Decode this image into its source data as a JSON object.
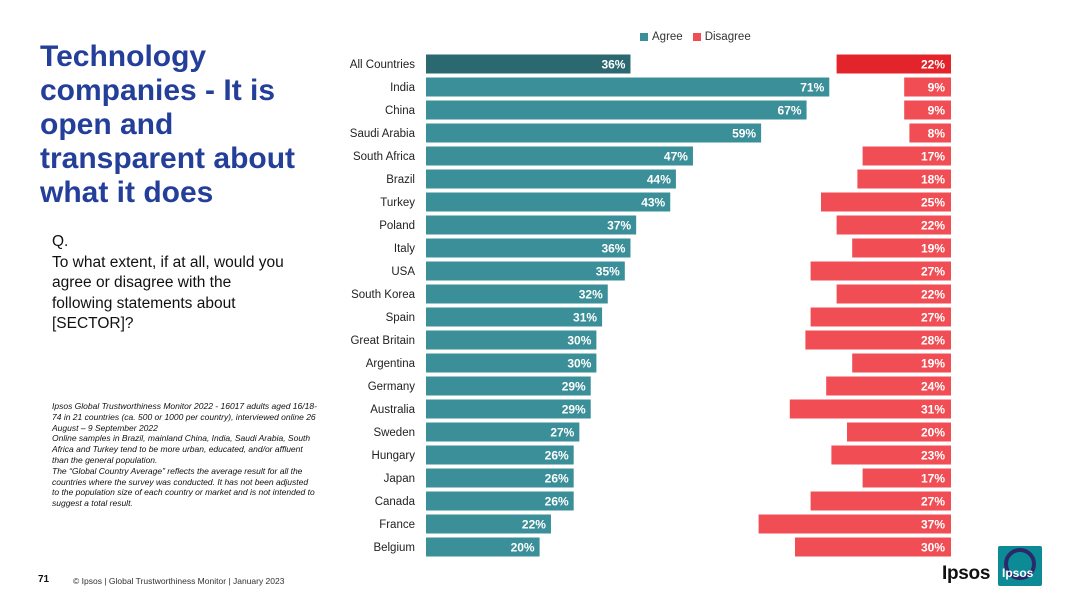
{
  "slide": {
    "title": "Technology companies - It is open and transparent about what it does",
    "question_label": "Q.",
    "question_text": "To what extent, if at all, would you agree or disagree with the following statements about [SECTOR]?",
    "source_note_1": "Ipsos Global Trustworthiness Monitor 2022 - 16017 adults aged 16/18-74 in 21 countries (ca. 500 or 1000 per country), interviewed online 26 August – 9 September 2022",
    "source_note_2": "Online samples in Brazil, mainland China, India, Saudi Arabia, South Africa and Turkey tend to be more urban, educated, and/or affluent than the general population.",
    "source_note_3": "The “Global Country Average” reflects the average result for all the countries where the survey was conducted. It has not been adjusted to the population size of each country or market and is not intended to suggest a total result.",
    "page_number": "71",
    "footer": "© Ipsos | Global Trustworthiness Monitor | January 2023",
    "logo_text": "Ipsos",
    "logo_mark_text": "Ipsos"
  },
  "chart_data": {
    "type": "bar",
    "orientation": "horizontal",
    "categories": [
      "All Countries",
      "India",
      "China",
      "Saudi Arabia",
      "South Africa",
      "Brazil",
      "Turkey",
      "Poland",
      "Italy",
      "USA",
      "South Korea",
      "Spain",
      "Great Britain",
      "Argentina",
      "Germany",
      "Australia",
      "Sweden",
      "Hungary",
      "Japan",
      "Canada",
      "France",
      "Belgium"
    ],
    "series": [
      {
        "name": "Agree",
        "values": [
          36,
          71,
          67,
          59,
          47,
          44,
          43,
          37,
          36,
          35,
          32,
          31,
          30,
          30,
          29,
          29,
          27,
          26,
          26,
          26,
          22,
          20
        ],
        "color": "#3a8f98",
        "highlight_color": "#2c6870"
      },
      {
        "name": "Disagree",
        "values": [
          22,
          9,
          9,
          8,
          17,
          18,
          25,
          22,
          19,
          27,
          22,
          27,
          28,
          19,
          24,
          31,
          20,
          23,
          17,
          27,
          37,
          30
        ],
        "color": "#f04e54",
        "highlight_color": "#e3242b"
      }
    ],
    "value_suffix": "%",
    "legend_position": "top",
    "grid": false
  }
}
